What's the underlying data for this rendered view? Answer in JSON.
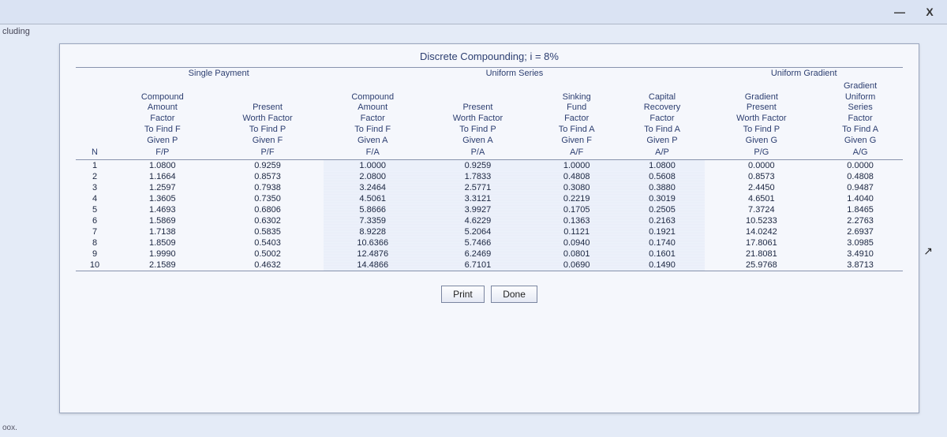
{
  "window": {
    "minimize": "—",
    "close": "X",
    "left_tab": "cluding",
    "left_label": "oox."
  },
  "titles": {
    "line1": "Discrete Compounding; i = 8%",
    "line2": "Single Payment",
    "line3": "Uniform Series",
    "line4": "Uniform Gradient"
  },
  "headers": {
    "n": "N",
    "h1a": "Compound",
    "h1b": "Amount",
    "h1c": "Factor",
    "h1d": "To Find F",
    "h1e": "Given P",
    "h1f": "F/P",
    "h2a": "Present",
    "h2b": "Worth Factor",
    "h2c": "To Find P",
    "h2d": "Given F",
    "h2e": "P/F",
    "h3a": "Compound",
    "h3b": "Amount",
    "h3c": "Factor",
    "h3d": "To Find F",
    "h3e": "Given A",
    "h3f": "F/A",
    "h4a": "Present",
    "h4b": "Worth Factor",
    "h4c": "To Find P",
    "h4d": "Given A",
    "h4e": "P/A",
    "h5a": "Sinking",
    "h5b": "Fund",
    "h5c": "Factor",
    "h5d": "To Find A",
    "h5e": "Given F",
    "h5f": "A/F",
    "h6a": "Capital",
    "h6b": "Recovery",
    "h6c": "Factor",
    "h6d": "To Find A",
    "h6e": "Given P",
    "h6f": "A/P",
    "h7a": "Gradient",
    "h7b": "Present",
    "h7c": "Worth Factor",
    "h7d": "To Find P",
    "h7e": "Given G",
    "h7f": "P/G",
    "h8a": "Gradient",
    "h8b": "Uniform",
    "h8c": "Series",
    "h8d": "Factor",
    "h8e": "To Find A",
    "h8f": "Given G",
    "h8g": "A/G"
  },
  "rows": [
    {
      "n": "1",
      "fp": "1.0800",
      "pf": "0.9259",
      "fa": "1.0000",
      "pa": "0.9259",
      "af": "1.0000",
      "ap": "1.0800",
      "pg": "0.0000",
      "ag": "0.0000"
    },
    {
      "n": "2",
      "fp": "1.1664",
      "pf": "0.8573",
      "fa": "2.0800",
      "pa": "1.7833",
      "af": "0.4808",
      "ap": "0.5608",
      "pg": "0.8573",
      "ag": "0.4808"
    },
    {
      "n": "3",
      "fp": "1.2597",
      "pf": "0.7938",
      "fa": "3.2464",
      "pa": "2.5771",
      "af": "0.3080",
      "ap": "0.3880",
      "pg": "2.4450",
      "ag": "0.9487"
    },
    {
      "n": "4",
      "fp": "1.3605",
      "pf": "0.7350",
      "fa": "4.5061",
      "pa": "3.3121",
      "af": "0.2219",
      "ap": "0.3019",
      "pg": "4.6501",
      "ag": "1.4040"
    },
    {
      "n": "5",
      "fp": "1.4693",
      "pf": "0.6806",
      "fa": "5.8666",
      "pa": "3.9927",
      "af": "0.1705",
      "ap": "0.2505",
      "pg": "7.3724",
      "ag": "1.8465"
    },
    {
      "n": "6",
      "fp": "1.5869",
      "pf": "0.6302",
      "fa": "7.3359",
      "pa": "4.6229",
      "af": "0.1363",
      "ap": "0.2163",
      "pg": "10.5233",
      "ag": "2.2763"
    },
    {
      "n": "7",
      "fp": "1.7138",
      "pf": "0.5835",
      "fa": "8.9228",
      "pa": "5.2064",
      "af": "0.1121",
      "ap": "0.1921",
      "pg": "14.0242",
      "ag": "2.6937"
    },
    {
      "n": "8",
      "fp": "1.8509",
      "pf": "0.5403",
      "fa": "10.6366",
      "pa": "5.7466",
      "af": "0.0940",
      "ap": "0.1740",
      "pg": "17.8061",
      "ag": "3.0985"
    },
    {
      "n": "9",
      "fp": "1.9990",
      "pf": "0.5002",
      "fa": "12.4876",
      "pa": "6.2469",
      "af": "0.0801",
      "ap": "0.1601",
      "pg": "21.8081",
      "ag": "3.4910"
    },
    {
      "n": "10",
      "fp": "2.1589",
      "pf": "0.4632",
      "fa": "14.4866",
      "pa": "6.7101",
      "af": "0.0690",
      "ap": "0.1490",
      "pg": "25.9768",
      "ag": "3.8713"
    }
  ],
  "buttons": {
    "print": "Print",
    "done": "Done"
  },
  "cursor": "↖"
}
